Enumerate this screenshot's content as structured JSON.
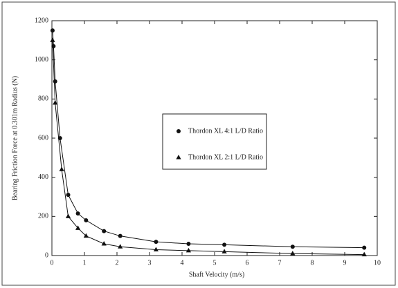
{
  "chart_data": {
    "type": "line",
    "xlabel": "Shaft Velocity (m/s)",
    "ylabel": "Bearing Friction Force at 0.301m Radius (N)",
    "xlim": [
      0,
      10
    ],
    "xticks": [
      0,
      1,
      2,
      3,
      4,
      5,
      6,
      7,
      8,
      9,
      10
    ],
    "ylim": [
      0,
      1200
    ],
    "yticks": [
      0,
      200,
      400,
      600,
      800,
      1000,
      1200
    ],
    "grid": false,
    "series": [
      {
        "name": "Thordon XL 4:1 L/D Ratio",
        "color": "#111111",
        "marker": "circle",
        "x": [
          0.02,
          0.05,
          0.1,
          0.25,
          0.5,
          0.8,
          1.05,
          1.6,
          2.1,
          3.2,
          4.2,
          5.3,
          7.4,
          9.6
        ],
        "values": [
          1150,
          1070,
          890,
          600,
          310,
          215,
          180,
          125,
          100,
          70,
          60,
          55,
          45,
          40
        ]
      },
      {
        "name": "Thordon XL 2:1 L/D Ratio",
        "color": "#111111",
        "marker": "triangle",
        "x": [
          0.02,
          0.1,
          0.3,
          0.5,
          0.8,
          1.05,
          1.6,
          2.1,
          3.2,
          4.2,
          5.3,
          7.4,
          9.6
        ],
        "values": [
          1100,
          780,
          440,
          200,
          140,
          100,
          60,
          45,
          30,
          25,
          20,
          10,
          5
        ]
      }
    ]
  }
}
